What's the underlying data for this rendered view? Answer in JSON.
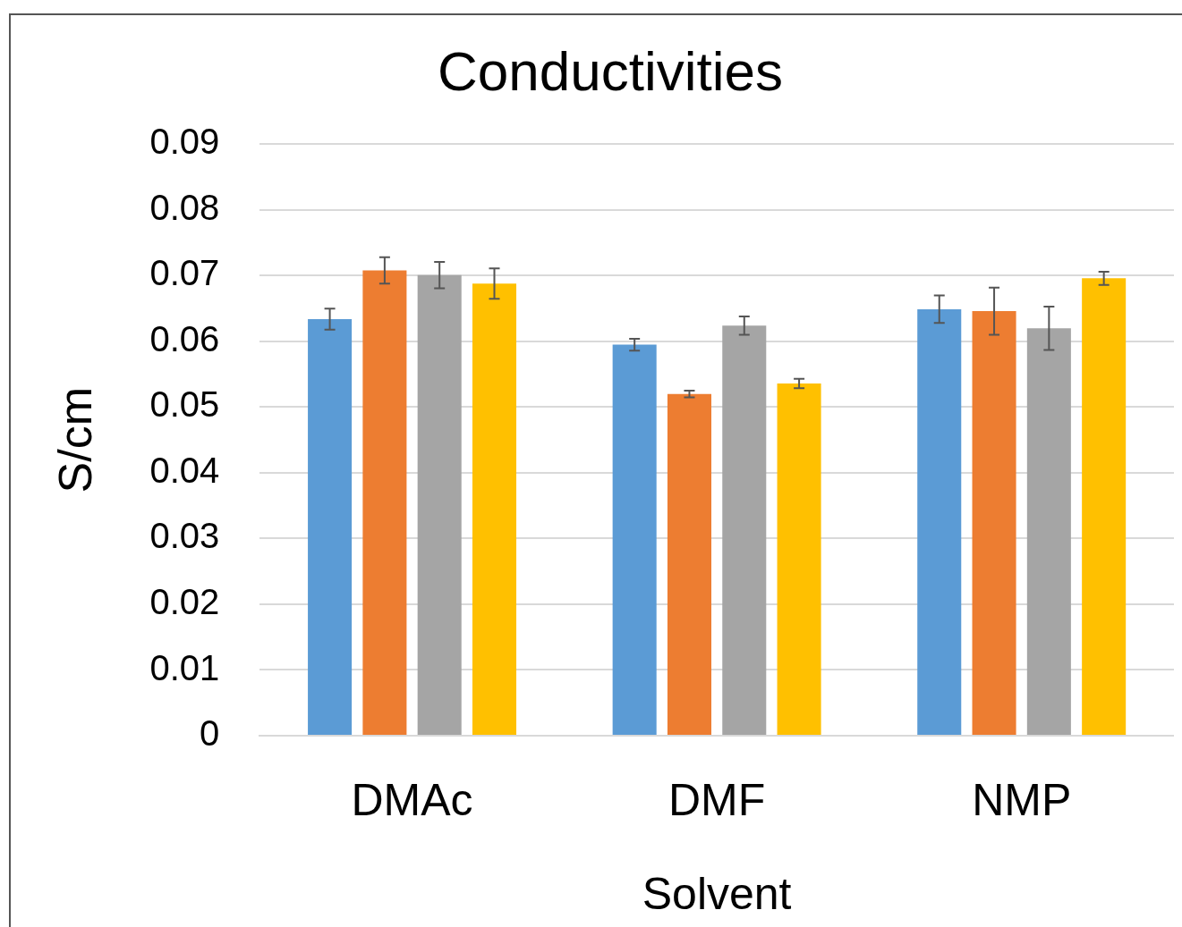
{
  "chart_data": {
    "type": "bar",
    "title": "Conductivities",
    "xlabel": "Solvent",
    "ylabel": "S/cm",
    "categories": [
      "DMAc",
      "DMF",
      "NMP"
    ],
    "series": [
      {
        "color": "#5b9bd5",
        "values": [
          0.0634,
          0.0595,
          0.0649
        ],
        "errors": [
          0.0016,
          0.0009,
          0.0021
        ]
      },
      {
        "color": "#ed7d31",
        "values": [
          0.0708,
          0.052,
          0.0646
        ],
        "errors": [
          0.002,
          0.0005,
          0.0036
        ]
      },
      {
        "color": "#a5a5a5",
        "values": [
          0.0701,
          0.0624,
          0.062
        ],
        "errors": [
          0.002,
          0.0014,
          0.0033
        ]
      },
      {
        "color": "#ffc000",
        "values": [
          0.0688,
          0.0536,
          0.0696
        ],
        "errors": [
          0.0023,
          0.0007,
          0.001
        ]
      }
    ],
    "ylim": [
      0,
      0.09
    ],
    "yticks": [
      0,
      0.01,
      0.02,
      0.03,
      0.04,
      0.05,
      0.06,
      0.07,
      0.08,
      0.09
    ],
    "grid": "y",
    "legend": false
  }
}
